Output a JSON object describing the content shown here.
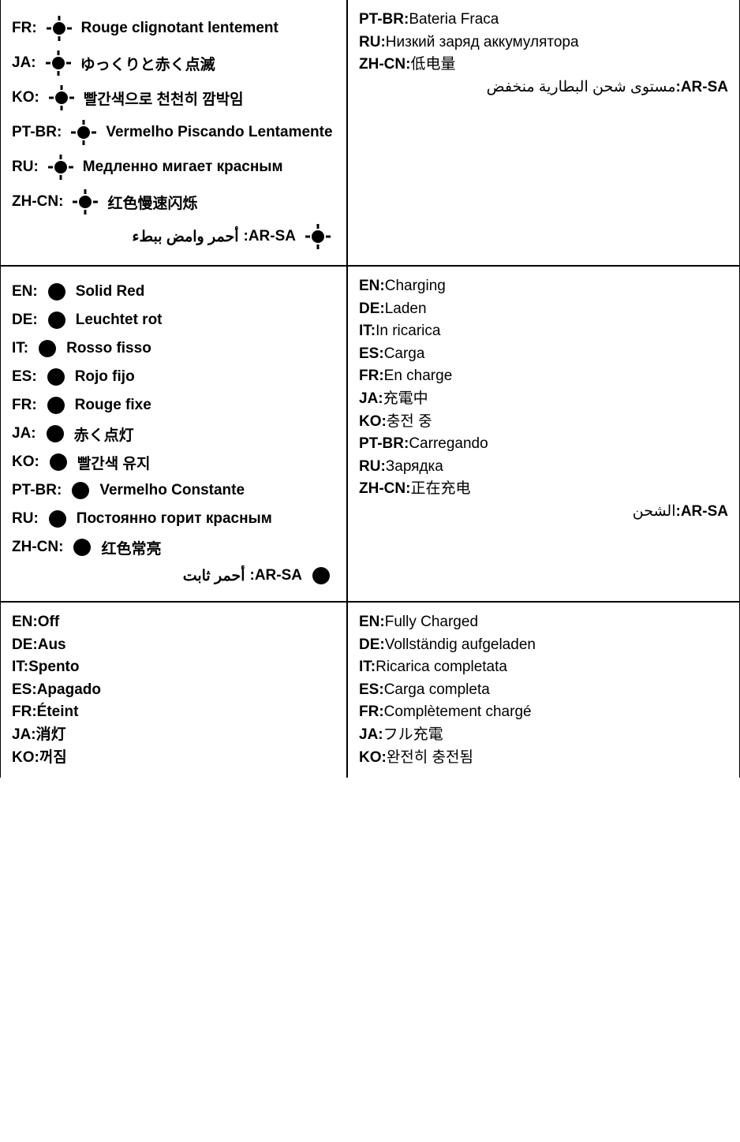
{
  "icons": {
    "blink_color": "#000000",
    "solid_color": "#000000"
  },
  "cells": {
    "topLeft": {
      "rows": [
        {
          "lang": "FR:",
          "icon": "blink",
          "label": "Rouge clignotant lentement",
          "rtl": false
        },
        {
          "lang": "JA:",
          "icon": "blink",
          "label": "ゆっくりと赤く点滅",
          "rtl": false
        },
        {
          "lang": "KO:",
          "icon": "blink",
          "label": "빨간색으로 천천히 깜박임",
          "rtl": false
        },
        {
          "lang": "PT-BR:",
          "icon": "blink",
          "label": "Vermelho Piscando Lentamente",
          "rtl": false
        },
        {
          "lang": "RU:",
          "icon": "blink",
          "label": "Медленно мигает красным",
          "rtl": false
        },
        {
          "lang": "ZH-CN:",
          "icon": "blink",
          "label": "红色慢速闪烁",
          "rtl": false
        },
        {
          "lang": "AR-SA:",
          "icon": "blink",
          "label": "أحمر وامض ببطء",
          "rtl": true
        }
      ]
    },
    "topRight": {
      "rows": [
        {
          "lang": "PT-BR:",
          "label": "Bateria Fraca",
          "rtl": false
        },
        {
          "lang": "RU:",
          "label": "Низкий заряд аккумулятора",
          "rtl": false
        },
        {
          "lang": "ZH-CN:",
          "label": "低电量",
          "rtl": false
        },
        {
          "lang": "AR-SA:",
          "label": "مستوى شحن البطارية منخفض",
          "rtl": true
        }
      ]
    },
    "midLeft": {
      "rows": [
        {
          "lang": "EN:",
          "icon": "solid",
          "label": "Solid Red",
          "rtl": false
        },
        {
          "lang": "DE:",
          "icon": "solid",
          "label": "Leuchtet rot",
          "rtl": false
        },
        {
          "lang": "IT:",
          "icon": "solid",
          "label": "Rosso fisso",
          "rtl": false
        },
        {
          "lang": "ES:",
          "icon": "solid",
          "label": "Rojo fijo",
          "rtl": false
        },
        {
          "lang": "FR:",
          "icon": "solid",
          "label": "Rouge fixe",
          "rtl": false
        },
        {
          "lang": "JA:",
          "icon": "solid",
          "label": "赤く点灯",
          "rtl": false
        },
        {
          "lang": "KO:",
          "icon": "solid",
          "label": "빨간색 유지",
          "rtl": false
        },
        {
          "lang": "PT-BR:",
          "icon": "solid",
          "label": "Vermelho Constante",
          "rtl": false
        },
        {
          "lang": "RU:",
          "icon": "solid",
          "label": "Постоянно горит красным",
          "rtl": false
        },
        {
          "lang": "ZH-CN:",
          "icon": "solid",
          "label": "红色常亮",
          "rtl": false
        },
        {
          "lang": "AR-SA:",
          "icon": "solid",
          "label": "أحمر ثابت",
          "rtl": true
        }
      ]
    },
    "midRight": {
      "rows": [
        {
          "lang": "EN:",
          "label": "Charging",
          "rtl": false
        },
        {
          "lang": "DE:",
          "label": "Laden",
          "rtl": false
        },
        {
          "lang": "IT:",
          "label": "In ricarica",
          "rtl": false
        },
        {
          "lang": "ES:",
          "label": "Carga",
          "rtl": false
        },
        {
          "lang": "FR:",
          "label": "En charge",
          "rtl": false
        },
        {
          "lang": "JA:",
          "label": "充電中",
          "rtl": false
        },
        {
          "lang": "KO:",
          "label": "충전 중",
          "rtl": false
        },
        {
          "lang": "PT-BR:",
          "label": "Carregando",
          "rtl": false
        },
        {
          "lang": "RU:",
          "label": "Зарядка",
          "rtl": false
        },
        {
          "lang": "ZH-CN:",
          "label": "正在充电",
          "rtl": false
        },
        {
          "lang": "AR-SA:",
          "label": "الشحن",
          "rtl": true
        }
      ]
    },
    "botLeft": {
      "rows": [
        {
          "lang": "EN:",
          "label": "Off",
          "rtl": false
        },
        {
          "lang": "DE:",
          "label": "Aus",
          "rtl": false
        },
        {
          "lang": "IT:",
          "label": "Spento",
          "rtl": false
        },
        {
          "lang": "ES:",
          "label": "Apagado",
          "rtl": false
        },
        {
          "lang": "FR:",
          "label": "Éteint",
          "rtl": false
        },
        {
          "lang": "JA:",
          "label": "消灯",
          "rtl": false
        },
        {
          "lang": "KO:",
          "label": "꺼짐",
          "rtl": false
        }
      ]
    },
    "botRight": {
      "rows": [
        {
          "lang": "EN:",
          "label": "Fully Charged",
          "rtl": false
        },
        {
          "lang": "DE:",
          "label": "Vollständig aufgeladen",
          "rtl": false
        },
        {
          "lang": "IT:",
          "label": "Ricarica completata",
          "rtl": false
        },
        {
          "lang": "ES:",
          "label": "Carga completa",
          "rtl": false
        },
        {
          "lang": "FR:",
          "label": "Complètement chargé",
          "rtl": false
        },
        {
          "lang": "JA:",
          "label": "フル充電",
          "rtl": false
        },
        {
          "lang": "KO:",
          "label": "완전히 충전됨",
          "rtl": false
        }
      ]
    }
  }
}
